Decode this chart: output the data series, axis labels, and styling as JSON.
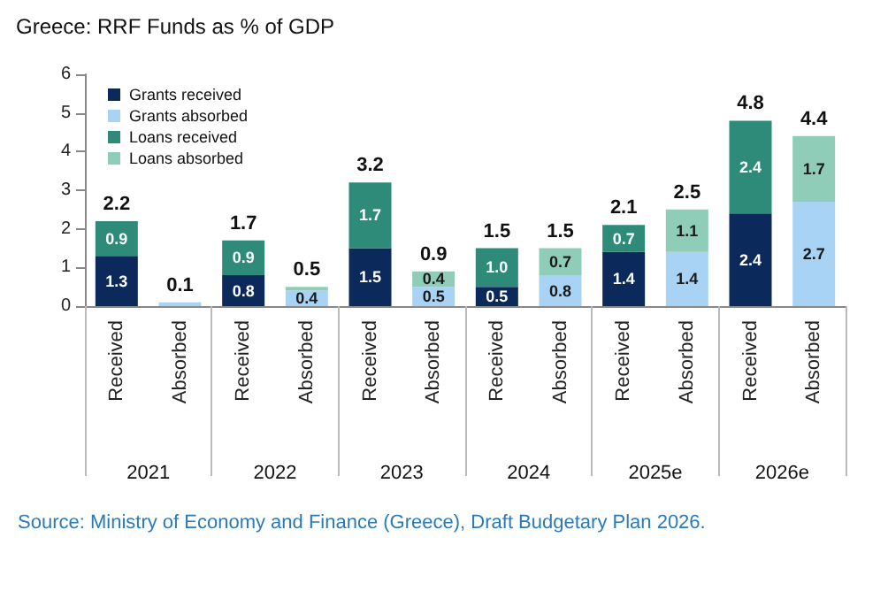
{
  "chart_data": {
    "type": "bar",
    "title": "Greece: RRF Funds as % of GDP",
    "categories": [
      "Received",
      "Absorbed",
      "Received",
      "Absorbed",
      "Received",
      "Absorbed",
      "Received",
      "Absorbed",
      "Received",
      "Absorbed",
      "Received",
      "Absorbed"
    ],
    "stacked": true,
    "series": [
      {
        "name": "Grants received",
        "color": "#0b2a5b",
        "values": [
          1.3,
          null,
          0.8,
          null,
          1.5,
          null,
          0.5,
          null,
          1.4,
          null,
          2.4,
          null
        ],
        "value_labels": [
          "1.3",
          null,
          "0.8",
          null,
          "1.5",
          null,
          "0.5",
          null,
          "1.4",
          null,
          "2.4",
          null
        ]
      },
      {
        "name": "Grants absorbed",
        "color": "#a9d3f5",
        "values": [
          null,
          0.1,
          null,
          0.4,
          null,
          0.5,
          null,
          0.8,
          null,
          1.4,
          null,
          2.7
        ],
        "value_labels": [
          null,
          null,
          null,
          "0.4",
          null,
          "0.5",
          null,
          "0.8",
          null,
          "1.4",
          null,
          "2.7"
        ]
      },
      {
        "name": "Loans received",
        "color": "#2e8b7a",
        "values": [
          0.9,
          null,
          0.9,
          null,
          1.7,
          null,
          1.0,
          null,
          0.7,
          null,
          2.4,
          null
        ],
        "value_labels": [
          "0.9",
          null,
          "0.9",
          null,
          "1.7",
          null,
          "1.0",
          null,
          "0.7",
          null,
          "2.4",
          null
        ]
      },
      {
        "name": "Loans absorbed",
        "color": "#8fcdb9",
        "values": [
          null,
          0,
          null,
          0.1,
          null,
          0.4,
          null,
          0.7,
          null,
          1.1,
          null,
          1.7
        ],
        "value_labels": [
          null,
          null,
          null,
          null,
          null,
          "0.4",
          null,
          "0.7",
          null,
          "1.1",
          null,
          "1.7"
        ]
      }
    ],
    "totals": [
      "2.2",
      "0.1",
      "1.7",
      "0.5",
      "3.2",
      "0.9",
      "1.5",
      "1.5",
      "2.1",
      "2.5",
      "4.8",
      "4.4"
    ],
    "ylim": [
      0,
      6
    ],
    "yticks": [
      0,
      1,
      2,
      3,
      4,
      5,
      6
    ],
    "grid": false,
    "legend": "top left",
    "annotations": [
      "2021",
      "2022",
      "2023",
      "2024",
      "2025e",
      "2026e",
      "Source: Ministry of Economy and Finance (Greece), Draft Budgetary Plan 2026."
    ]
  }
}
